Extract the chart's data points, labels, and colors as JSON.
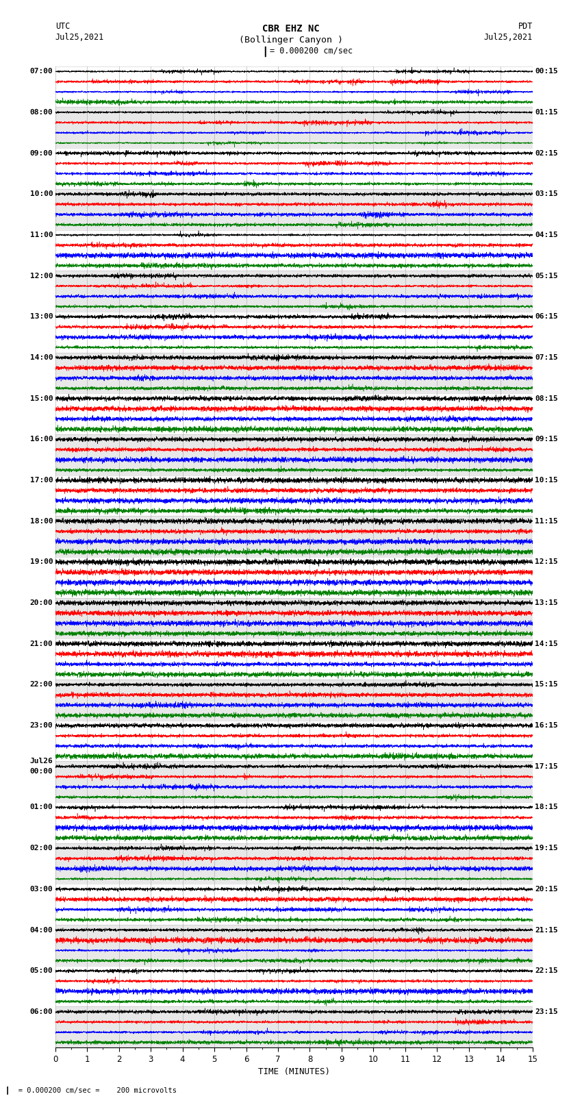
{
  "title_line1": "CBR EHZ NC",
  "title_line2": "(Bollinger Canyon )",
  "scale_label": "= 0.000200 cm/sec",
  "left_header_top": "UTC",
  "left_header_bot": "Jul25,2021",
  "right_header_top": "PDT",
  "right_header_bot": "Jul25,2021",
  "xlabel": "TIME (MINUTES)",
  "footnote": "= 0.000200 cm/sec =    200 microvolts",
  "trace_colors": [
    "black",
    "red",
    "blue",
    "green"
  ],
  "left_times_with_rows": [
    [
      0,
      "07:00"
    ],
    [
      4,
      "08:00"
    ],
    [
      8,
      "09:00"
    ],
    [
      12,
      "10:00"
    ],
    [
      16,
      "11:00"
    ],
    [
      20,
      "12:00"
    ],
    [
      24,
      "13:00"
    ],
    [
      28,
      "14:00"
    ],
    [
      32,
      "15:00"
    ],
    [
      36,
      "16:00"
    ],
    [
      40,
      "17:00"
    ],
    [
      44,
      "18:00"
    ],
    [
      48,
      "19:00"
    ],
    [
      52,
      "20:00"
    ],
    [
      56,
      "21:00"
    ],
    [
      60,
      "22:00"
    ],
    [
      64,
      "23:00"
    ],
    [
      68,
      "Jul26\n00:00"
    ],
    [
      72,
      "01:00"
    ],
    [
      76,
      "02:00"
    ],
    [
      80,
      "03:00"
    ],
    [
      84,
      "04:00"
    ],
    [
      88,
      "05:00"
    ],
    [
      92,
      "06:00"
    ]
  ],
  "right_times_with_rows": [
    [
      0,
      "00:15"
    ],
    [
      4,
      "01:15"
    ],
    [
      8,
      "02:15"
    ],
    [
      12,
      "03:15"
    ],
    [
      16,
      "04:15"
    ],
    [
      20,
      "05:15"
    ],
    [
      24,
      "06:15"
    ],
    [
      28,
      "07:15"
    ],
    [
      32,
      "08:15"
    ],
    [
      36,
      "09:15"
    ],
    [
      40,
      "10:15"
    ],
    [
      44,
      "11:15"
    ],
    [
      48,
      "12:15"
    ],
    [
      52,
      "13:15"
    ],
    [
      56,
      "14:15"
    ],
    [
      60,
      "15:15"
    ],
    [
      64,
      "16:15"
    ],
    [
      68,
      "17:15"
    ],
    [
      72,
      "18:15"
    ],
    [
      76,
      "19:15"
    ],
    [
      80,
      "20:15"
    ],
    [
      84,
      "21:15"
    ],
    [
      88,
      "22:15"
    ],
    [
      92,
      "23:15"
    ]
  ],
  "n_rows": 96,
  "n_minutes": 15,
  "bg_color": "white",
  "band_color": "#e8e8e8",
  "grid_color": "#999999",
  "amplitude_scale": 0.42,
  "noise_base": 0.1,
  "lw": 0.4
}
